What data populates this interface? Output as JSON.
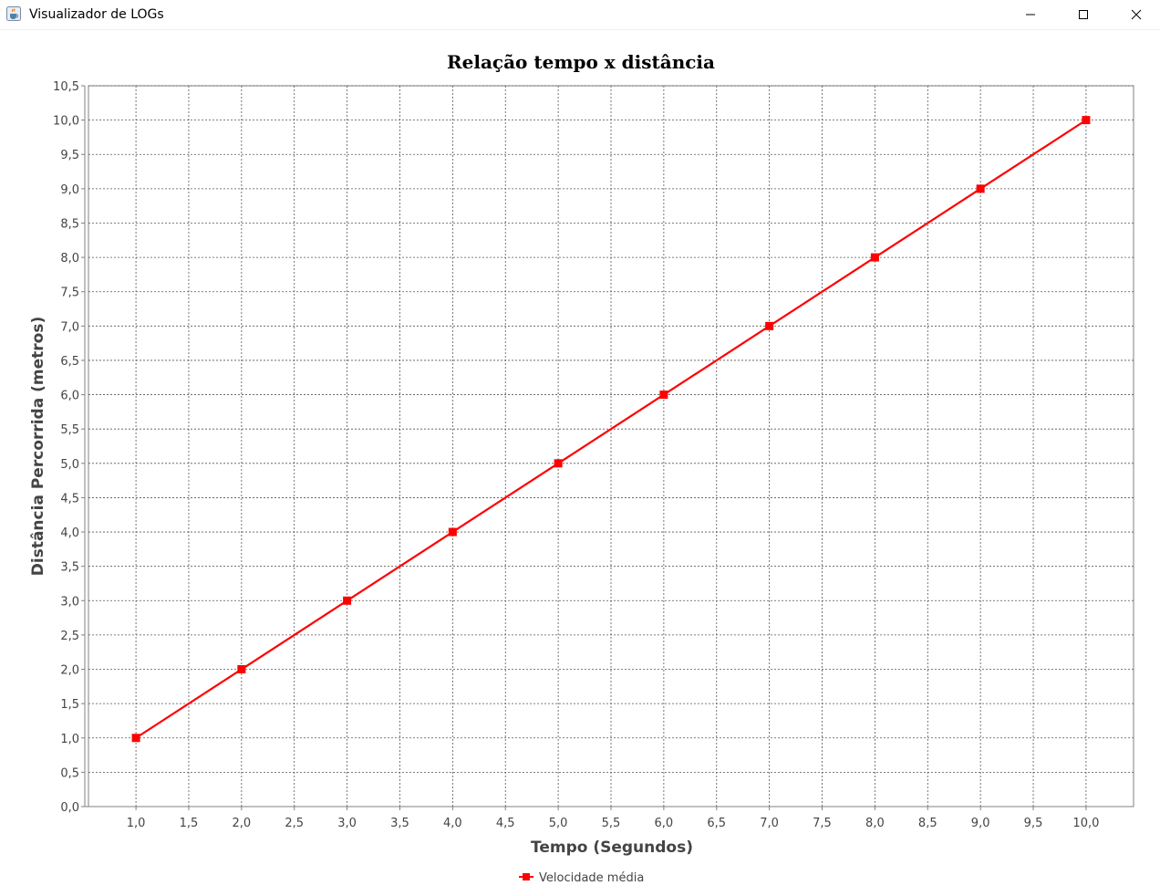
{
  "window": {
    "title": "Visualizador de LOGs",
    "icon": "java-cup-icon",
    "controls": [
      "minimize-icon",
      "maximize-icon",
      "close-icon"
    ]
  },
  "chart_data": {
    "type": "line",
    "title": "Relação tempo x distância",
    "xlabel": "Tempo (Segundos)",
    "ylabel": "Distância Percorrida (metros)",
    "xlim": [
      0.55,
      10.45
    ],
    "ylim": [
      0,
      10.5
    ],
    "x_ticks": [
      "1,0",
      "1,5",
      "2,0",
      "2,5",
      "3,0",
      "3,5",
      "4,0",
      "4,5",
      "5,0",
      "5,5",
      "6,0",
      "6,5",
      "7,0",
      "7,5",
      "8,0",
      "8,5",
      "9,0",
      "9,5",
      "10,0"
    ],
    "y_ticks": [
      "0,0",
      "0,5",
      "1,0",
      "1,5",
      "2,0",
      "2,5",
      "3,0",
      "3,5",
      "4,0",
      "4,5",
      "5,0",
      "5,5",
      "6,0",
      "6,5",
      "7,0",
      "7,5",
      "8,0",
      "8,5",
      "9,0",
      "9,5",
      "10,0",
      "10,5"
    ],
    "grid": true,
    "legend_position": "bottom-center",
    "series": [
      {
        "name": "Velocidade média",
        "color": "#ff0000",
        "marker": "square",
        "x": [
          1,
          2,
          3,
          4,
          5,
          6,
          7,
          8,
          9,
          10
        ],
        "y": [
          1,
          2,
          3,
          4,
          5,
          6,
          7,
          8,
          9,
          10
        ]
      }
    ]
  }
}
